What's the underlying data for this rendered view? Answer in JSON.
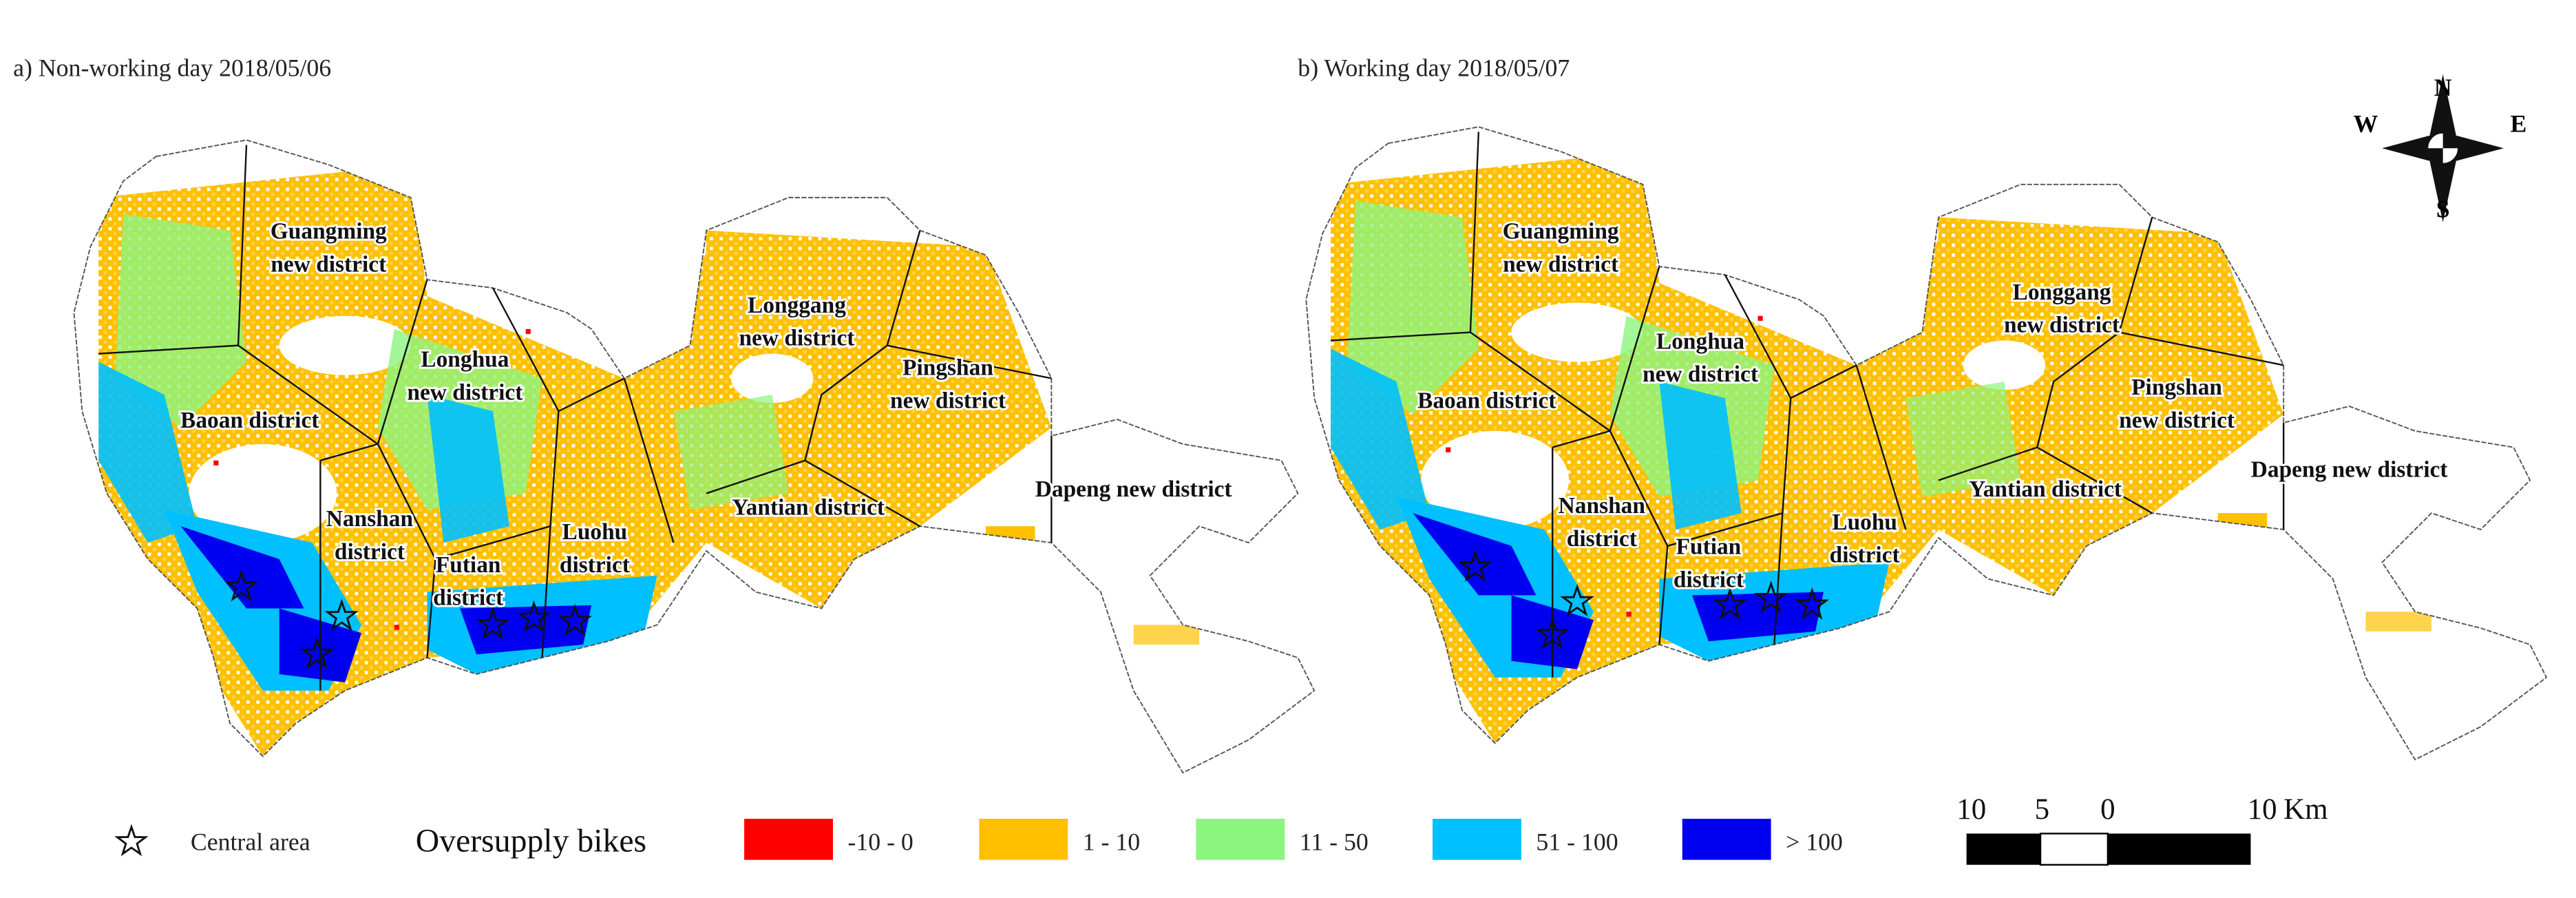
{
  "panels": [
    {
      "title": "a) Non-working day 2018/05/06",
      "districts": [
        [
          "Guangming",
          "new district"
        ],
        [
          "Longhua",
          "new district"
        ],
        [
          "Baoan district"
        ],
        [
          "Nanshan",
          "district"
        ],
        [
          "Futian",
          "district"
        ],
        [
          "Luohu",
          "district"
        ],
        [
          "Longgang",
          "new district"
        ],
        [
          "Pingshan",
          "new district"
        ],
        [
          "Yantian district"
        ],
        [
          "Dapeng new district"
        ]
      ]
    },
    {
      "title": "b) Working day 2018/05/07",
      "districts": [
        [
          "Guangming",
          "new district"
        ],
        [
          "Longhua",
          "new district"
        ],
        [
          "Baoan district"
        ],
        [
          "Nanshan",
          "district"
        ],
        [
          "Futian",
          "district"
        ],
        [
          "Luohu",
          "district"
        ],
        [
          "Longgang",
          "new district"
        ],
        [
          "Pingshan",
          "new district"
        ],
        [
          "Yantian district"
        ],
        [
          "Dapeng new district"
        ]
      ]
    }
  ],
  "compass": {
    "north": "N",
    "south": "S",
    "west": "W",
    "east": "E"
  },
  "legend": {
    "central_area": "Central area",
    "title": "Oversupply bikes",
    "items": [
      {
        "label": "-10 - 0",
        "color": "#ff0000"
      },
      {
        "label": "1 - 10",
        "color": "#ffc000"
      },
      {
        "label": "11 - 50",
        "color": "#8cf57f"
      },
      {
        "label": "51 - 100",
        "color": "#00c0ff"
      },
      {
        "label": "> 100",
        "color": "#0000f0"
      }
    ]
  },
  "scale_bar": {
    "labels": [
      "10",
      "5",
      "0",
      "10"
    ],
    "unit": "Km"
  }
}
